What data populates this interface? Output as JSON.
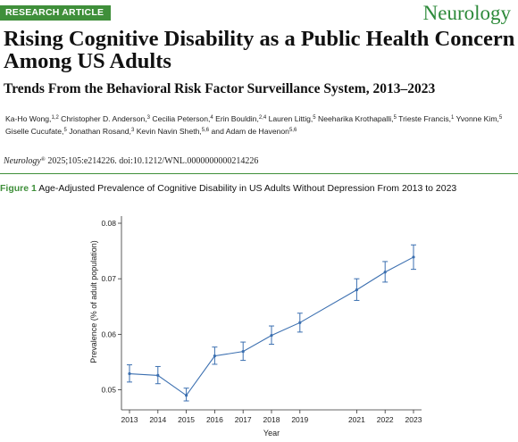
{
  "header": {
    "badge": "RESEARCH ARTICLE",
    "journal_logo": "Neurology",
    "title": "Rising Cognitive Disability as a Public Health Concern Among US Adults",
    "subtitle": "Trends From the Behavioral Risk Factor Surveillance System, 2013–2023",
    "authors": [
      {
        "name": "Ka-Ho Wong,",
        "sup": "1,2",
        "after": " "
      },
      {
        "name": "Christopher D. Anderson,",
        "sup": "3",
        "after": " "
      },
      {
        "name": "Cecilia Peterson,",
        "sup": "4",
        "after": " "
      },
      {
        "name": "Erin Bouldin,",
        "sup": "2,4",
        "after": " "
      },
      {
        "name": "Lauren Littig,",
        "sup": "5",
        "after": " "
      },
      {
        "name": "Neeharika Krothapalli,",
        "sup": "5",
        "after": " "
      },
      {
        "name": "Trieste Francis,",
        "sup": "1",
        "after": " "
      },
      {
        "name": "Yvonne Kim,",
        "sup": "5",
        "after": " "
      },
      {
        "name": "Giselle Cucufate,",
        "sup": "5",
        "after": " "
      },
      {
        "name": "Jonathan Rosand,",
        "sup": "3",
        "after": " "
      },
      {
        "name": "Kevin Navin Sheth,",
        "sup": "5,6",
        "after": " "
      },
      {
        "name": "and Adam de Havenon",
        "sup": "5,6",
        "after": ""
      }
    ],
    "citation_journal": "Neurology",
    "citation_mark": "®",
    "citation_rest": " 2025;105:e214226. doi:10.1212/WNL.0000000000214226"
  },
  "figure": {
    "label": "Figure 1",
    "caption": "Age-Adjusted Prevalence of Cognitive Disability in US Adults Without Depression From 2013 to 2023"
  },
  "colors": {
    "accent_green": "#3f8f3a",
    "line_blue": "#3b6fb0"
  },
  "chart_data": {
    "type": "line",
    "title": "",
    "xlabel": "Year",
    "ylabel": "Prevalence (% of adult population)",
    "x": [
      2013,
      2014,
      2015,
      2016,
      2017,
      2018,
      2019,
      2021,
      2022,
      2023
    ],
    "x_ticks": [
      "2013",
      "2014",
      "2015",
      "2016",
      "2017",
      "2018",
      "2019",
      "2021",
      "2022",
      "2023"
    ],
    "y_ticks": [
      "0.05",
      "0.06",
      "0.07",
      "0.08"
    ],
    "ylim": [
      0.048,
      0.08
    ],
    "series": [
      {
        "values": [
          0.0529,
          0.0526,
          0.049,
          0.0561,
          0.0569,
          0.0598,
          0.0621,
          0.068,
          0.0712,
          0.0739
        ],
        "lower": [
          0.0514,
          0.0511,
          0.048,
          0.0546,
          0.0553,
          0.0582,
          0.0604,
          0.0661,
          0.0694,
          0.0717
        ],
        "upper": [
          0.0545,
          0.0542,
          0.0503,
          0.0577,
          0.0586,
          0.0615,
          0.0638,
          0.07,
          0.0731,
          0.0761
        ]
      }
    ],
    "grid": false,
    "legend": "none"
  }
}
